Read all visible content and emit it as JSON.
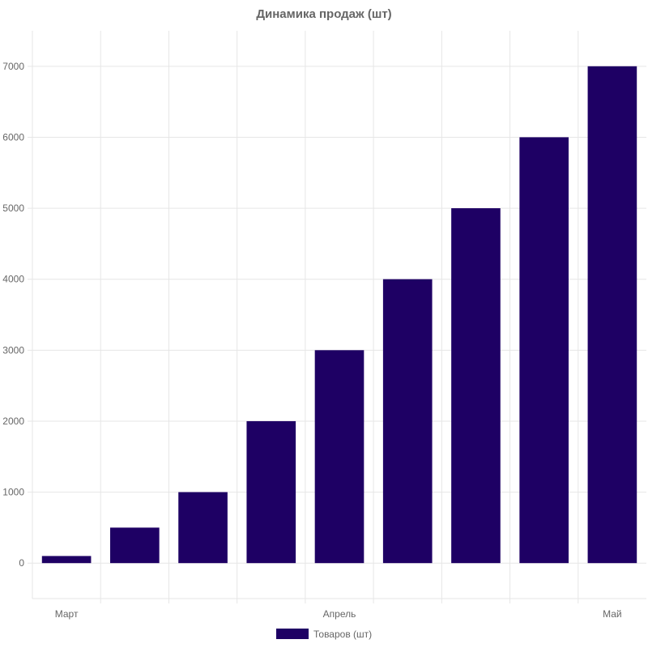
{
  "chart_data": {
    "type": "bar",
    "title": "Динамика продаж (шт)",
    "categories": [
      "Март",
      "",
      "",
      "",
      "Апрель",
      "",
      "",
      "",
      "Май"
    ],
    "series": [
      {
        "name": "Товаров (шт)",
        "values": [
          100,
          500,
          1000,
          2000,
          3000,
          4000,
          5000,
          6000,
          7000
        ]
      }
    ],
    "y_ticks": [
      "0",
      "1000",
      "2000",
      "3000",
      "4000",
      "5000",
      "6000",
      "7000"
    ],
    "ylim": [
      -500,
      7500
    ],
    "grid": true,
    "legend_position": "bottom",
    "colors": {
      "bar": "#1e0064",
      "grid": "#e6e6e6",
      "text": "#666666"
    }
  }
}
